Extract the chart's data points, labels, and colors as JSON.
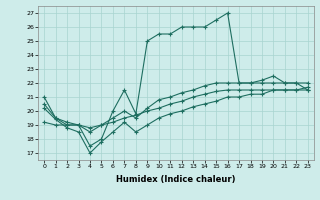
{
  "xlabel": "Humidex (Indice chaleur)",
  "xlim": [
    -0.5,
    23.5
  ],
  "ylim": [
    16.5,
    27.5
  ],
  "yticks": [
    17,
    18,
    19,
    20,
    21,
    22,
    23,
    24,
    25,
    26,
    27
  ],
  "xticks": [
    0,
    1,
    2,
    3,
    4,
    5,
    6,
    7,
    8,
    9,
    10,
    11,
    12,
    13,
    14,
    15,
    16,
    17,
    18,
    19,
    20,
    21,
    22,
    23
  ],
  "bg_color": "#ceecea",
  "grid_color": "#a8d5d0",
  "line_color": "#1e6e60",
  "line1_y": [
    21.0,
    19.5,
    19.0,
    19.0,
    17.5,
    18.0,
    20.0,
    21.5,
    19.8,
    25.0,
    25.5,
    25.5,
    26.0,
    26.0,
    26.0,
    26.5,
    27.0,
    22.0,
    22.0,
    22.2,
    22.5,
    22.0,
    22.0,
    21.5
  ],
  "line2_y": [
    19.2,
    19.0,
    19.0,
    19.0,
    18.8,
    19.0,
    19.2,
    19.5,
    19.7,
    20.0,
    20.2,
    20.5,
    20.7,
    21.0,
    21.2,
    21.4,
    21.5,
    21.5,
    21.5,
    21.5,
    21.5,
    21.5,
    21.5,
    21.7
  ],
  "line3_y": [
    20.2,
    19.4,
    18.8,
    18.5,
    17.0,
    17.8,
    18.5,
    19.2,
    18.5,
    19.0,
    19.5,
    19.8,
    20.0,
    20.3,
    20.5,
    20.7,
    21.0,
    21.0,
    21.2,
    21.2,
    21.5,
    21.5,
    21.5,
    21.5
  ],
  "line4_y": [
    20.5,
    19.5,
    19.2,
    19.0,
    18.5,
    19.0,
    19.5,
    20.0,
    19.5,
    20.2,
    20.8,
    21.0,
    21.3,
    21.5,
    21.8,
    22.0,
    22.0,
    22.0,
    22.0,
    22.0,
    22.0,
    22.0,
    22.0,
    22.0
  ]
}
